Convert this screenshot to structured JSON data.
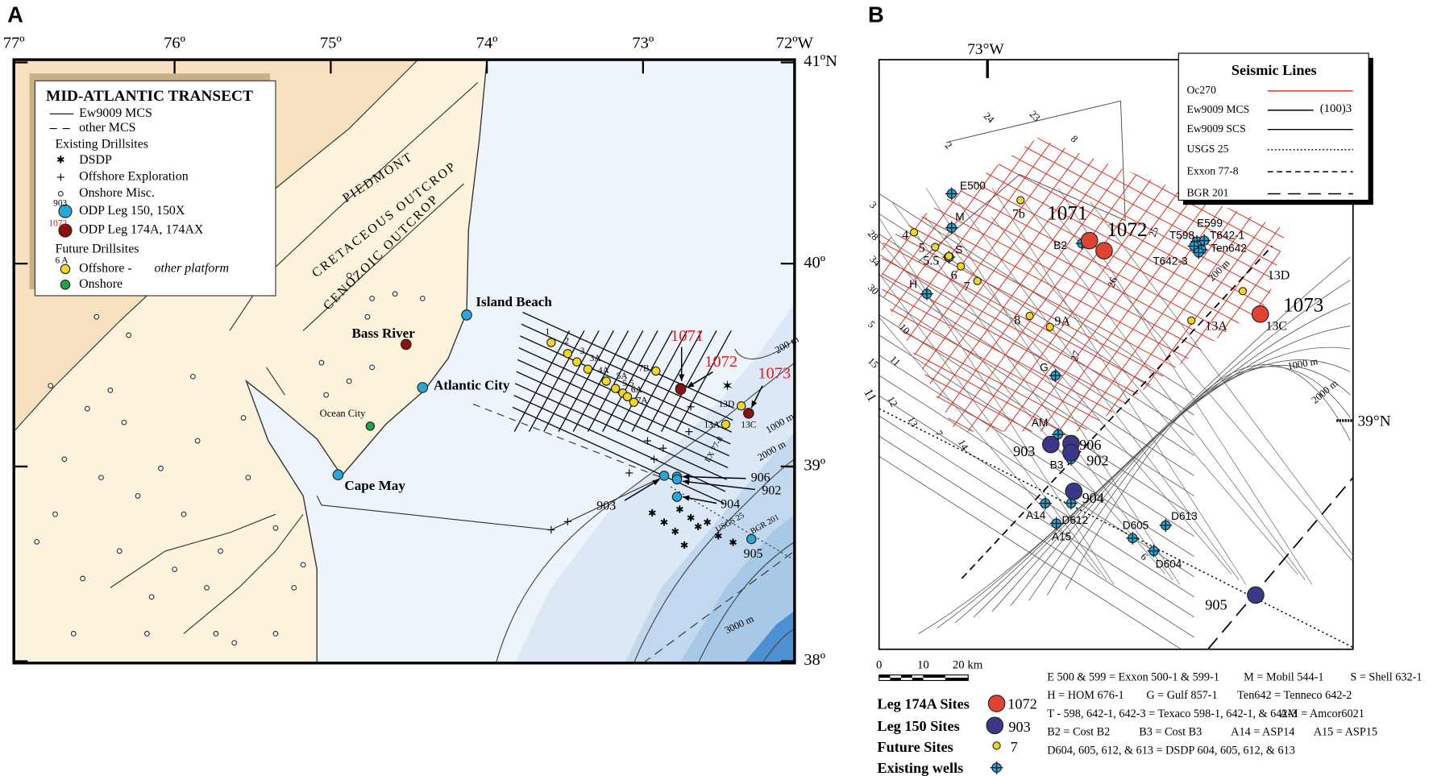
{
  "panel_a": {
    "label": "A",
    "lon_labels": [
      "77º",
      "76º",
      "75º",
      "74º",
      "73º",
      "72ºW"
    ],
    "lat_labels": [
      "41ºN",
      "40º",
      "39º",
      "38º"
    ],
    "legend": {
      "title": "MID-ATLANTIC TRANSECT",
      "items": [
        "Ew9009 MCS",
        "other MCS",
        "Existing Drillsites",
        "DSDP",
        "Offshore Exploration",
        "Onshore Misc.",
        "ODP Leg 150, 150X",
        "ODP Leg 174A, 174AX",
        "Future Drillsites",
        "Offshore - ",
        "other platform",
        "Onshore"
      ],
      "example_numbers": [
        "903",
        "1072",
        "6 A"
      ]
    },
    "regions": [
      "PIEDMONT",
      "CRETACEOUS OUTCROP",
      "CENOZOIC OUTCROP"
    ],
    "places": [
      "Island Beach",
      "Bass River",
      "Atlantic City",
      "Ocean City",
      "Cape May"
    ],
    "future_sites": [
      "1",
      "2",
      "3",
      "3A",
      "4A",
      "5A",
      "5.5",
      "6A",
      "7A",
      "7B",
      "13D",
      "13A",
      "13C"
    ],
    "leg174a_sites": [
      "1071",
      "1072",
      "1073"
    ],
    "leg150_sites": [
      "903",
      "906",
      "902",
      "904",
      "905"
    ],
    "isobaths": [
      "200 m",
      "1000 m",
      "2000 m",
      "3000 m"
    ],
    "line_labels": [
      "EX 77-8",
      "USGS 25",
      "BGR 201"
    ]
  },
  "panel_b": {
    "label": "B",
    "lon_label": "73°W",
    "lat_label": "39°N",
    "seismic_legend": {
      "title": "Seismic Lines",
      "lines": [
        "Oc270",
        "Ew9009 MCS",
        "Ew9009 SCS",
        "USGS 25",
        "Exxon 77-8",
        "BGR 201"
      ],
      "note": "(100)3"
    },
    "line_numbers": [
      "24",
      "23",
      "2",
      "8",
      "25",
      "26",
      "3",
      "28",
      "34",
      "30",
      "5",
      "10",
      "15",
      "11",
      "11",
      "12",
      "13",
      "7",
      "14",
      "27",
      "6"
    ],
    "wells": [
      "E500",
      "M",
      "S",
      "H",
      "B2",
      "E599",
      "T598",
      "T642-1",
      "Ten642",
      "T642-3",
      "G",
      "AM",
      "B3",
      "A14",
      "D612",
      "A15",
      "D605",
      "D613",
      "D604"
    ],
    "leg174a_sites": [
      "1071",
      "1072",
      "1073"
    ],
    "leg150_sites": [
      "903",
      "906",
      "902",
      "904",
      "905"
    ],
    "future_sites": [
      "4",
      "5",
      "5.5",
      "6",
      "7",
      "7b",
      "8",
      "9A",
      "13A",
      "13D",
      "13C"
    ],
    "isobaths": [
      "200 m",
      "1000 m",
      "2000 m"
    ],
    "scale": [
      "0",
      "10",
      "20 km"
    ],
    "site_legend": {
      "labels": [
        "Leg 174A Sites",
        "Leg 150 Sites",
        "Future Sites",
        "Existing wells"
      ],
      "examples": [
        "1072",
        "903",
        "7"
      ]
    },
    "abbreviations": [
      [
        "E 500 & 599  = Exxon 500-1 & 599-1",
        "M = Mobil 544-1",
        "S = Shell 632-1"
      ],
      [
        "H = HOM 676-1",
        "G = Gulf 857-1",
        "Ten642 = Tenneco 642-2"
      ],
      [
        "T - 598, 642-1, 642-3 = Texaco 598-1, 642-1, & 642-3",
        "AM = Amcor6021"
      ],
      [
        "B2 = Cost B2",
        "B3 = Cost B3",
        "A14 = ASP14",
        "A15 = ASP15"
      ],
      [
        "D604, 605, 612, & 613 = DSDP 604, 605, 612, & 613"
      ]
    ]
  }
}
